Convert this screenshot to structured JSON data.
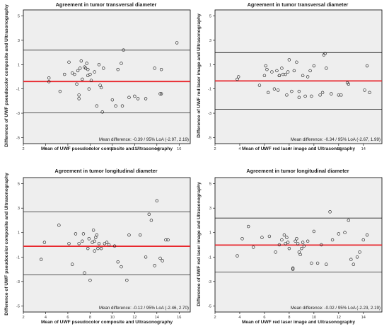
{
  "chart_data": [
    {
      "type": "scatter",
      "title": "Agreement in tumor transversal diameter",
      "xlabel": "Mean of UWF pseudocolor composite and Ultrasonography",
      "ylabel": "Difference of UWF pseudocolor composite and Ultrasonography",
      "xlim": [
        2.0,
        17.0
      ],
      "ylim": [
        -5.5,
        5.5
      ],
      "xticks": [
        "2",
        "4",
        "6",
        "8",
        "10",
        "12",
        "14",
        "16"
      ],
      "yticks": [
        "5",
        "3",
        "1",
        "-1",
        "-3",
        "-5"
      ],
      "mean": -0.39,
      "loa_lower": -2.97,
      "loa_upper": 2.19,
      "note": "Mean difference: -0.39 / 95% LoA (-2.97, 2.19)",
      "grid": false,
      "x": [
        4.3,
        4.3,
        5.3,
        5.7,
        6.1,
        6.4,
        6.6,
        6.8,
        6.9,
        7.0,
        7.0,
        7.1,
        7.2,
        7.3,
        7.5,
        7.6,
        7.7,
        7.8,
        7.8,
        7.9,
        8.0,
        8.1,
        8.4,
        8.6,
        8.8,
        8.9,
        9.0,
        9.1,
        9.2,
        10.0,
        10.3,
        10.5,
        10.8,
        10.9,
        11.0,
        11.5,
        12.0,
        12.3,
        13.0,
        13.8,
        14.3,
        14.4,
        14.4,
        15.8
      ],
      "y": [
        -0.1,
        -0.4,
        -1.2,
        0.2,
        1.2,
        0.3,
        0.2,
        -0.6,
        0.5,
        -1.5,
        -1.8,
        0.7,
        1.3,
        -0.2,
        0.8,
        0.7,
        1.1,
        0.6,
        0.1,
        -1.0,
        0.2,
        -0.3,
        0.4,
        -2.4,
        1.0,
        -0.7,
        -0.9,
        -2.9,
        0.7,
        -1.9,
        -2.4,
        0.6,
        1.1,
        -2.4,
        2.2,
        -1.7,
        -1.6,
        -1.8,
        -1.8,
        0.7,
        -1.4,
        -1.4,
        0.6,
        2.8
      ]
    },
    {
      "type": "scatter",
      "title": "Agreement in tumor transversal diameter",
      "xlabel": "Mean of UWF red laser image and Ultrasonography",
      "ylabel": "Difference of UWF red laser image and Ultrasonography",
      "xlim": [
        2.0,
        15.5
      ],
      "ylim": [
        -5.5,
        5.5
      ],
      "xticks": [
        "2",
        "4",
        "6",
        "8",
        "10",
        "12",
        "14"
      ],
      "yticks": [
        "5",
        "3",
        "1",
        "-1",
        "-3",
        "-5"
      ],
      "mean": -0.34,
      "loa_lower": -2.67,
      "loa_upper": 1.99,
      "note": "Mean difference: -0.34 / 95% LoA (-2.67, 1.99)",
      "grid": false,
      "x": [
        3.8,
        3.9,
        5.6,
        6.0,
        6.1,
        6.2,
        6.3,
        6.6,
        6.8,
        7.0,
        7.1,
        7.2,
        7.2,
        7.4,
        7.5,
        7.7,
        7.8,
        7.9,
        8.0,
        8.2,
        8.4,
        8.6,
        8.8,
        8.8,
        9.1,
        9.3,
        9.5,
        9.7,
        9.8,
        10.0,
        10.5,
        10.7,
        10.8,
        10.9,
        11.0,
        11.4,
        12.0,
        12.2,
        12.7,
        12.8,
        14.1,
        14.3,
        14.5
      ],
      "y": [
        -0.2,
        0.0,
        -0.7,
        0.1,
        0.9,
        0.6,
        -1.3,
        0.4,
        -1.0,
        0.5,
        -1.1,
        0.1,
        0.1,
        0.7,
        0.2,
        0.2,
        -1.5,
        0.4,
        1.4,
        -1.2,
        0.5,
        1.2,
        -1.2,
        -1.7,
        0.1,
        -1.6,
        0.0,
        0.5,
        -1.6,
        0.9,
        -1.5,
        -1.3,
        1.8,
        1.9,
        0.7,
        -1.4,
        -1.5,
        -1.5,
        -0.5,
        -0.6,
        -1.1,
        0.9,
        -1.3
      ]
    },
    {
      "type": "scatter",
      "title": "Agreement in tumor longitudinal diameter",
      "xlabel": "Mean of UWF pseudocolor composite and Ultrasonography",
      "ylabel": "Difference of UWF pseudocolor composite and Ultrasonography",
      "xlim": [
        2.0,
        17.0
      ],
      "ylim": [
        -5.5,
        5.5
      ],
      "xticks": [
        "2",
        "4",
        "6",
        "8",
        "10",
        "12",
        "14",
        "16"
      ],
      "yticks": [
        "5",
        "3",
        "1",
        "-1",
        "-3",
        "-5"
      ],
      "mean": -0.12,
      "loa_lower": -2.46,
      "loa_upper": 2.7,
      "note": "Mean difference: -0.12 / 95% LoA (-2.46, 2.70)",
      "grid": false,
      "x": [
        3.6,
        3.9,
        5.2,
        6.1,
        6.4,
        6.7,
        7.0,
        7.3,
        7.4,
        7.5,
        7.8,
        7.9,
        8.0,
        8.2,
        8.3,
        8.4,
        8.4,
        8.5,
        8.6,
        8.7,
        8.8,
        9.0,
        9.3,
        9.5,
        9.7,
        10.2,
        10.5,
        10.8,
        11.3,
        11.5,
        12.5,
        13.0,
        13.3,
        13.5,
        13.8,
        14.0,
        14.3,
        14.5,
        14.8,
        15.0
      ],
      "y": [
        -1.2,
        0.2,
        1.6,
        0.1,
        -1.6,
        0.9,
        0.1,
        0.3,
        0.9,
        -2.3,
        -0.3,
        0.5,
        -2.9,
        0.2,
        1.2,
        -0.5,
        0.3,
        0.6,
        0.8,
        -0.3,
        0.1,
        -0.3,
        0.1,
        0.2,
        0.0,
        -0.1,
        -1.4,
        -1.8,
        -2.9,
        0.8,
        0.8,
        -1.0,
        2.5,
        2.0,
        -1.7,
        3.6,
        -1.1,
        -1.3,
        0.4,
        0.4
      ]
    },
    {
      "type": "scatter",
      "title": "Agreement in tumor longitudinal diameter",
      "xlabel": "Mean of UWF red laser image and Ultrasonography",
      "ylabel": "Difference of UWF red laser image and Ultrasonography",
      "xlim": [
        2.0,
        15.5
      ],
      "ylim": [
        -5.5,
        5.5
      ],
      "xticks": [
        "2",
        "4",
        "6",
        "8",
        "10",
        "12",
        "14"
      ],
      "yticks": [
        "5",
        "3",
        "1",
        "-1",
        "-3",
        "-5"
      ],
      "mean": -0.02,
      "loa_lower": -2.23,
      "loa_upper": 2.19,
      "note": "Mean difference: -0.02 / 95% LoA (-2.23, 2.19)",
      "grid": false,
      "x": [
        3.8,
        4.2,
        4.7,
        5.1,
        5.8,
        6.4,
        6.9,
        7.2,
        7.4,
        7.6,
        7.7,
        7.8,
        7.9,
        8.0,
        8.3,
        8.3,
        8.5,
        8.6,
        8.7,
        8.8,
        8.9,
        9.0,
        9.1,
        9.2,
        9.5,
        9.8,
        10.0,
        10.3,
        10.6,
        11.0,
        11.3,
        11.5,
        12.0,
        12.5,
        12.8,
        13.0,
        13.2,
        13.5,
        13.7,
        14.0,
        14.3
      ],
      "y": [
        -0.9,
        0.5,
        1.5,
        -0.2,
        0.6,
        0.7,
        -0.6,
        0.0,
        0.4,
        0.8,
        0.1,
        0.6,
        0.2,
        -0.3,
        -2.0,
        -1.9,
        0.3,
        0.5,
        0.1,
        -0.6,
        -0.8,
        -0.3,
        0.2,
        -0.1,
        0.3,
        -1.5,
        1.1,
        -1.5,
        0.0,
        -1.6,
        2.7,
        0.4,
        0.9,
        1.0,
        2.0,
        -1.2,
        -1.6,
        -1.0,
        -0.6,
        0.4,
        0.8
      ]
    }
  ]
}
